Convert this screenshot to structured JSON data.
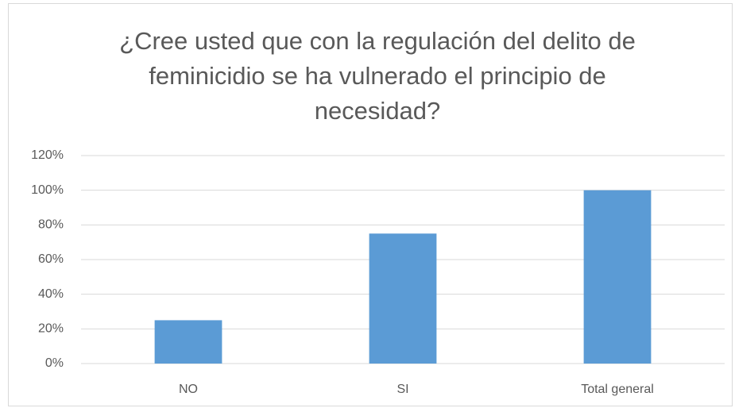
{
  "chart_data": {
    "type": "bar",
    "title": "¿Cree usted que con la regulación del delito de feminicidio se ha vulnerado el principio de necesidad?",
    "categories": [
      "NO",
      "SI",
      "Total general"
    ],
    "values": [
      25,
      75,
      100
    ],
    "color": "#5b9bd5",
    "ylim": [
      0,
      120
    ],
    "yticks": [
      {
        "value": 0,
        "label": "0%"
      },
      {
        "value": 20,
        "label": "20%"
      },
      {
        "value": 40,
        "label": "40%"
      },
      {
        "value": 60,
        "label": "60%"
      },
      {
        "value": 80,
        "label": "80%"
      },
      {
        "value": 100,
        "label": "100%"
      },
      {
        "value": 120,
        "label": "120%"
      }
    ],
    "grid": true
  }
}
